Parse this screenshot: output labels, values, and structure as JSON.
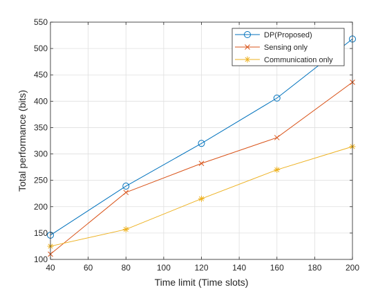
{
  "chart_data": {
    "type": "line",
    "title": "",
    "xlabel": "Time limit (Time slots)",
    "ylabel": "Total performance (bits)",
    "xlim": [
      40,
      200
    ],
    "ylim": [
      100,
      550
    ],
    "xticks": [
      40,
      60,
      80,
      100,
      120,
      140,
      160,
      180,
      200
    ],
    "yticks": [
      100,
      150,
      200,
      250,
      300,
      350,
      400,
      450,
      500,
      550
    ],
    "grid": true,
    "legend_position": "top-right",
    "x": [
      40,
      80,
      120,
      160,
      200
    ],
    "series": [
      {
        "name": "DP(Proposed)",
        "marker": "circle",
        "color": "#0072bd",
        "values": [
          146,
          239,
          320,
          406,
          518
        ]
      },
      {
        "name": "Sensing only",
        "marker": "x",
        "color": "#d95319",
        "values": [
          110,
          227,
          282,
          331,
          436
        ]
      },
      {
        "name": "Communication only",
        "marker": "star",
        "color": "#edb120",
        "values": [
          125,
          157,
          215,
          270,
          314
        ]
      }
    ]
  }
}
